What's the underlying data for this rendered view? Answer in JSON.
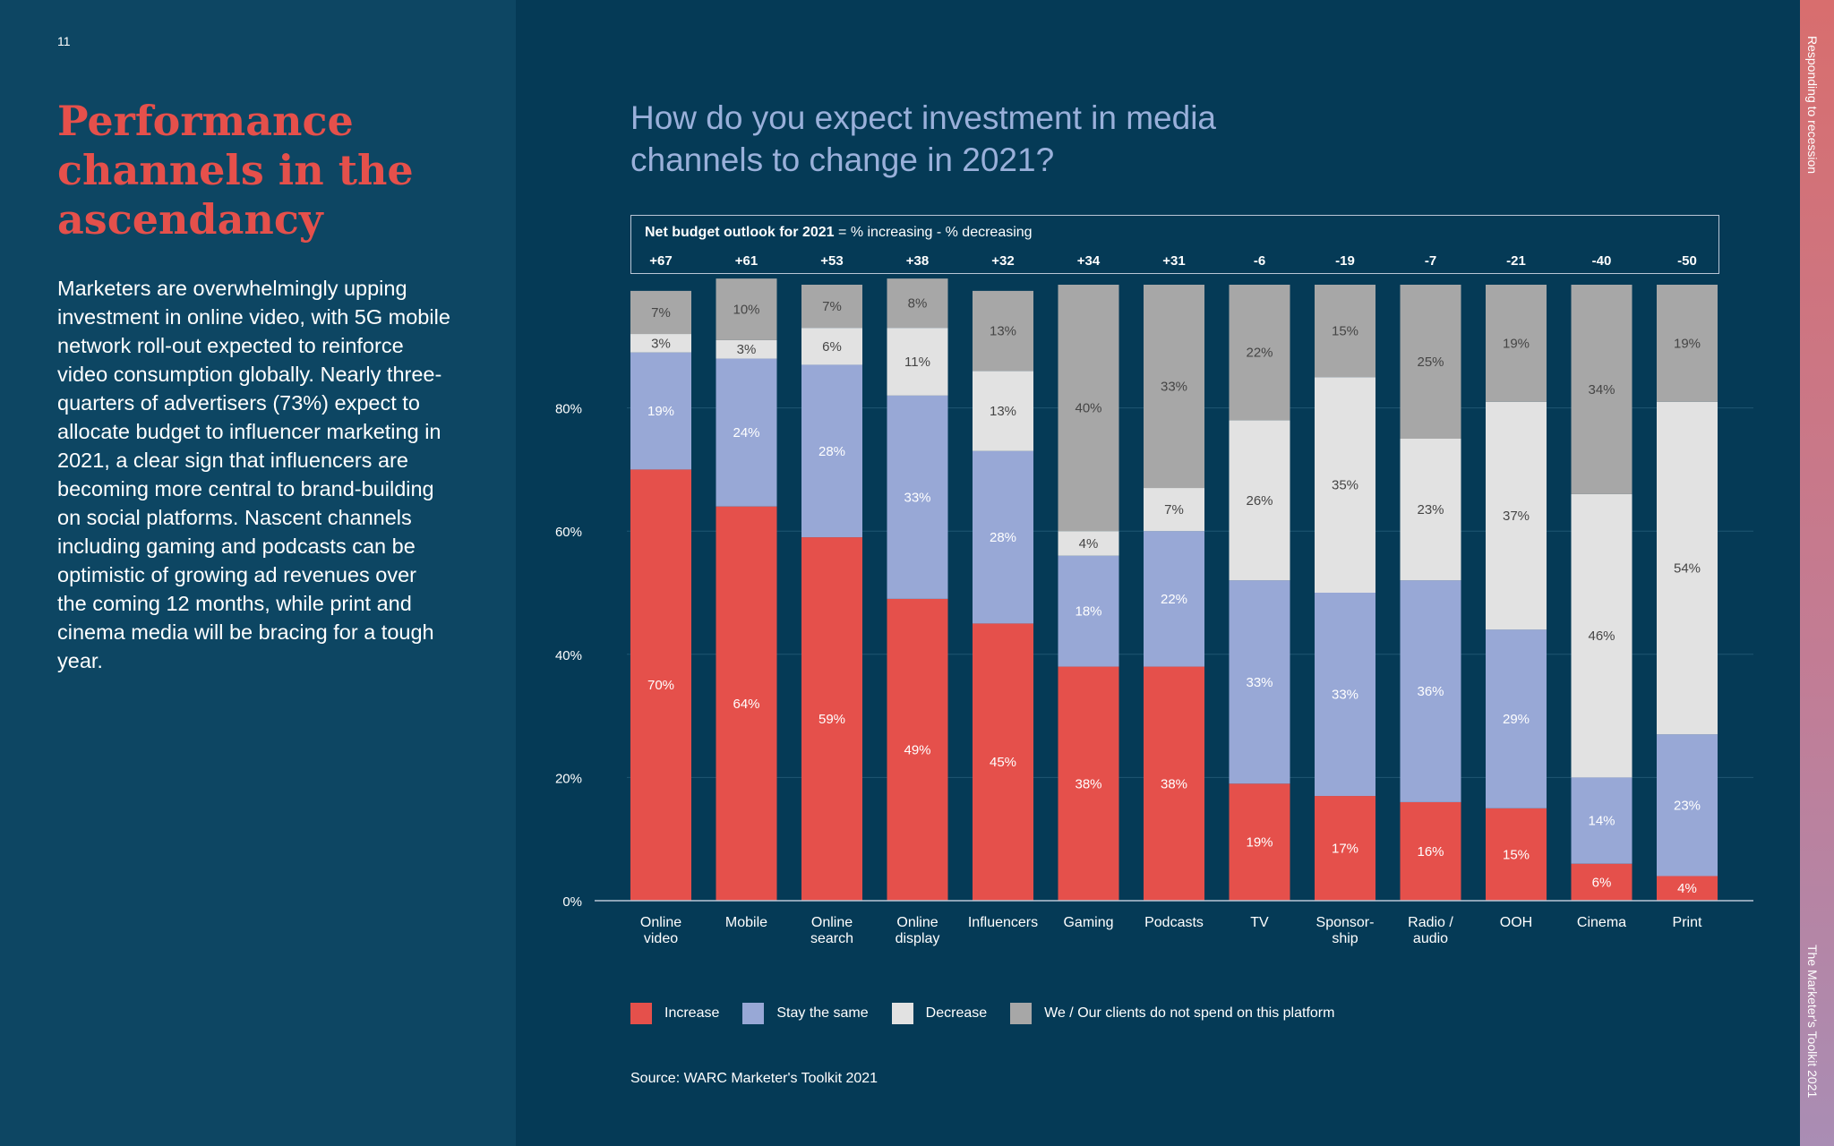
{
  "page": {
    "number": "11",
    "headline": "Performance channels in the ascendancy",
    "body": "Marketers are overwhelmingly upping investment in online video, with 5G mobile network roll-out expected to reinforce video consumption globally. Nearly three-quarters of advertisers (73%) expect to allocate budget to influencer marketing in 2021, a clear sign that influencers are becoming more central to brand-building on social platforms. Nascent channels including gaming and podcasts can be optimistic of growing ad revenues over the coming 12 months, while print and cinema media will be bracing for a tough year.",
    "side_label_top": "Responding to recession",
    "side_label_bottom": "The Marketer's Toolkit 2021"
  },
  "chart": {
    "net_caption_bold": "Net budget outlook for 2021",
    "net_caption_rest": " = % increasing - % decreasing",
    "source": "Source: WARC Marketer's Toolkit 2021"
  },
  "chart_data": {
    "type": "bar",
    "stacked": true,
    "title": "How do you expect investment in media channels to change in 2021?",
    "xlabel": "",
    "ylabel": "",
    "ylim": [
      0,
      100
    ],
    "yticks": [
      0,
      20,
      40,
      60,
      80
    ],
    "ytick_labels": [
      "0%",
      "20%",
      "40%",
      "60%",
      "80%"
    ],
    "grid": true,
    "categories": [
      [
        "Online",
        "video"
      ],
      [
        "Mobile"
      ],
      [
        "Online",
        "search"
      ],
      [
        "Online",
        "display"
      ],
      [
        "Influencers"
      ],
      [
        "Gaming"
      ],
      [
        "Podcasts"
      ],
      [
        "TV"
      ],
      [
        "Sponsor-",
        "ship"
      ],
      [
        "Radio /",
        "audio"
      ],
      [
        "OOH"
      ],
      [
        "Cinema"
      ],
      [
        "Print"
      ]
    ],
    "net_labels": [
      "+67",
      "+61",
      "+53",
      "+38",
      "+32",
      "+34",
      "+31",
      "-6",
      "-19",
      "-7",
      "-21",
      "-40",
      "-50"
    ],
    "series": [
      {
        "name": "Increase",
        "color": "#e5504b",
        "values": [
          70,
          64,
          59,
          49,
          45,
          38,
          38,
          19,
          17,
          16,
          15,
          6,
          4
        ]
      },
      {
        "name": "Stay the same",
        "color": "#98a8d6",
        "values": [
          19,
          24,
          28,
          33,
          28,
          18,
          22,
          33,
          33,
          36,
          29,
          14,
          23
        ]
      },
      {
        "name": "Decrease",
        "color": "#e2e2e2",
        "values": [
          3,
          3,
          6,
          11,
          13,
          4,
          7,
          26,
          35,
          23,
          37,
          46,
          54
        ]
      },
      {
        "name": "We / Our clients do not spend on this platform",
        "color": "#a7a7a7",
        "values": [
          7,
          10,
          7,
          8,
          13,
          40,
          33,
          22,
          15,
          25,
          19,
          34,
          19
        ]
      }
    ]
  }
}
